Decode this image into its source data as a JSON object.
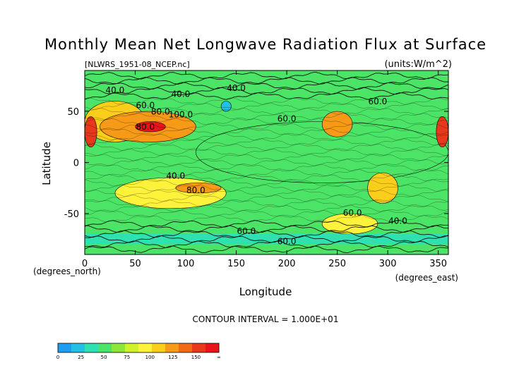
{
  "chart_data": {
    "type": "contour",
    "title": "Monthly Mean Net Longwave Radiation Flux at Surface",
    "source_file": "[NLWRS_1951-08_NCEP.nc]",
    "units": "(units:W/m^2)",
    "xlabel": "Longitude",
    "ylabel": "Latitude",
    "x_unit_label": "(degrees_east)",
    "y_unit_label": "(degrees_north)",
    "xlim": [
      0,
      360
    ],
    "ylim": [
      -90,
      90
    ],
    "x_ticks": [
      0,
      50,
      100,
      150,
      200,
      250,
      300,
      350
    ],
    "y_ticks": [
      50,
      0,
      -50
    ],
    "contour_interval_text": "CONTOUR INTERVAL = 1.000E+01",
    "contour_labels": [
      "40.0",
      "40.0",
      "60.0",
      "80.0",
      "100.0",
      "40.0",
      "60.0",
      "80.0",
      "40.0",
      "80.0",
      "60.0",
      "40.0",
      "60.0",
      "60.0",
      "60.0"
    ],
    "colorbar": {
      "tick_labels": [
        "0",
        "25",
        "50",
        "75",
        "100",
        "125",
        "150",
        "∞"
      ],
      "colors": [
        "#1e9cf0",
        "#23c0e6",
        "#2fe0b0",
        "#4ce466",
        "#8ee63a",
        "#cff22a",
        "#fff23a",
        "#fcce1c",
        "#f79a18",
        "#f26a14",
        "#e8381c",
        "#e8141c"
      ]
    },
    "field_regions": [
      {
        "lon": [
          0,
          360
        ],
        "lat": [
          -90,
          90
        ],
        "value": 45
      },
      {
        "lon": [
          110,
          360
        ],
        "lat": [
          -20,
          40
        ],
        "value": 40
      },
      {
        "lon": [
          0,
          60
        ],
        "lat": [
          20,
          60
        ],
        "value": 90
      },
      {
        "lon": [
          15,
          110
        ],
        "lat": [
          20,
          50
        ],
        "value": 100
      },
      {
        "lon": [
          50,
          80
        ],
        "lat": [
          30,
          40
        ],
        "value": 140
      },
      {
        "lon": [
          0,
          12
        ],
        "lat": [
          15,
          45
        ],
        "value": 130
      },
      {
        "lon": [
          235,
          265
        ],
        "lat": [
          25,
          50
        ],
        "value": 110
      },
      {
        "lon": [
          348,
          360
        ],
        "lat": [
          15,
          45
        ],
        "value": 130
      },
      {
        "lon": [
          30,
          140
        ],
        "lat": [
          -45,
          -15
        ],
        "value": 80
      },
      {
        "lon": [
          90,
          135
        ],
        "lat": [
          -30,
          -20
        ],
        "value": 100
      },
      {
        "lon": [
          235,
          290
        ],
        "lat": [
          -70,
          -50
        ],
        "value": 85
      },
      {
        "lon": [
          280,
          310
        ],
        "lat": [
          -40,
          -10
        ],
        "value": 90
      },
      {
        "lon": [
          135,
          145
        ],
        "lat": [
          50,
          60
        ],
        "value": 20
      },
      {
        "lon": [
          0,
          360
        ],
        "lat": [
          -80,
          -70
        ],
        "value": 35
      }
    ]
  }
}
